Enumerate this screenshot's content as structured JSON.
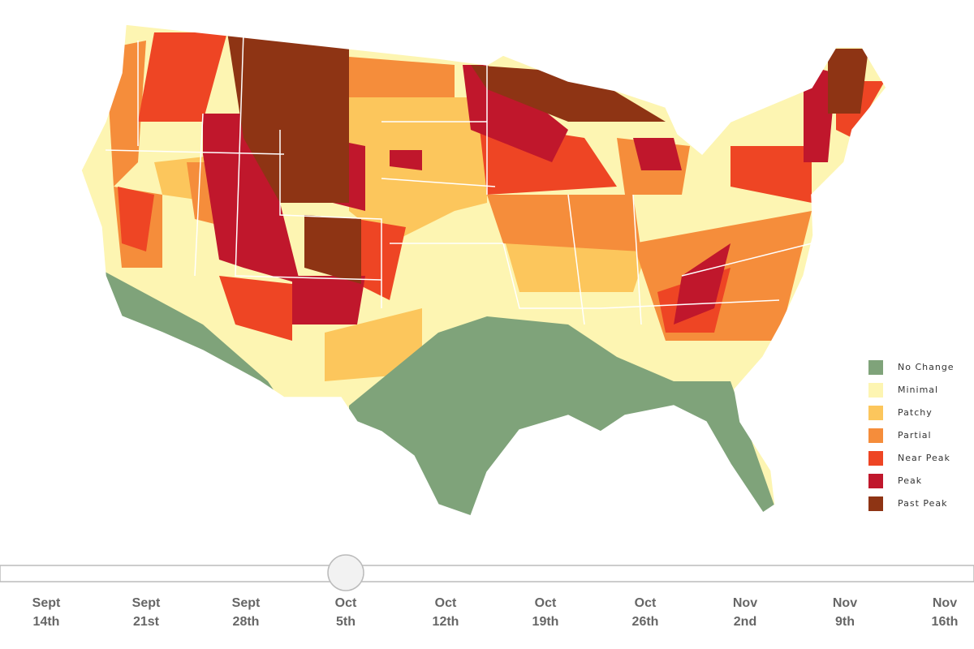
{
  "legend": {
    "items": [
      {
        "label": "No Change",
        "color": "#7fa37a"
      },
      {
        "label": "Minimal",
        "color": "#fdf5b2"
      },
      {
        "label": "Patchy",
        "color": "#fcc65c"
      },
      {
        "label": "Partial",
        "color": "#f58d3b"
      },
      {
        "label": "Near Peak",
        "color": "#ee4524"
      },
      {
        "label": "Peak",
        "color": "#c0172c"
      },
      {
        "label": "Past Peak",
        "color": "#8e3414"
      }
    ]
  },
  "timeline": {
    "ticks": [
      {
        "month": "Sept",
        "day": "14th"
      },
      {
        "month": "Sept",
        "day": "21st"
      },
      {
        "month": "Sept",
        "day": "28th"
      },
      {
        "month": "Oct",
        "day": "5th"
      },
      {
        "month": "Oct",
        "day": "12th"
      },
      {
        "month": "Oct",
        "day": "19th"
      },
      {
        "month": "Oct",
        "day": "26th"
      },
      {
        "month": "Nov",
        "day": "2nd"
      },
      {
        "month": "Nov",
        "day": "9th"
      },
      {
        "month": "Nov",
        "day": "16th"
      }
    ]
  }
}
